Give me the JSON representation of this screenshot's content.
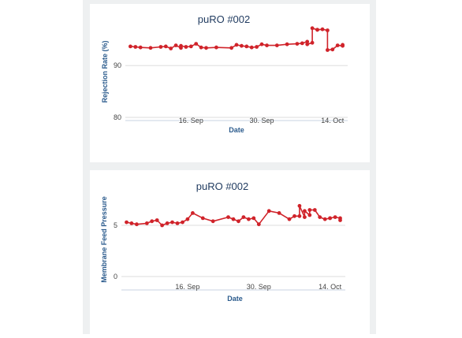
{
  "colors": {
    "series": "#d0232a",
    "axis_title": "#2a5a8c",
    "title": "#1f3a5f",
    "grid": "#dddddd",
    "panel_bg": "#eef0f1",
    "card_bg": "#ffffff"
  },
  "chart_data": [
    {
      "type": "line",
      "title": "puRO #002",
      "xlabel": "Date",
      "ylabel": "Rejection Rate (%)",
      "x_ticks": [
        "16. Sep",
        "30. Sep",
        "14. Oct"
      ],
      "x_tick_dates": [
        "2023-09-16",
        "2023-09-30",
        "2023-10-14"
      ],
      "y_ticks": [
        80,
        90
      ],
      "y_tick_labels": [
        "80",
        "90"
      ],
      "xlim": [
        "2023-09-03",
        "2023-10-17"
      ],
      "ylim": [
        80,
        99
      ],
      "grid": "horizontal",
      "series": [
        {
          "x": [
            "2023-09-04",
            "2023-09-05",
            "2023-09-06",
            "2023-09-08",
            "2023-09-10",
            "2023-09-11",
            "2023-09-12",
            "2023-09-13",
            "2023-09-14",
            "2023-09-14",
            "2023-09-15",
            "2023-09-16",
            "2023-09-17",
            "2023-09-18",
            "2023-09-19",
            "2023-09-21",
            "2023-09-24",
            "2023-09-25",
            "2023-09-26",
            "2023-09-27",
            "2023-09-28",
            "2023-09-29",
            "2023-09-30",
            "2023-10-01",
            "2023-10-03",
            "2023-10-05",
            "2023-10-07",
            "2023-10-08",
            "2023-10-09",
            "2023-10-09",
            "2023-10-10",
            "2023-10-10",
            "2023-10-11",
            "2023-10-11",
            "2023-10-12",
            "2023-10-13",
            "2023-10-13",
            "2023-10-14",
            "2023-10-15",
            "2023-10-16",
            "2023-10-16"
          ],
          "y": [
            93.7,
            93.6,
            93.5,
            93.4,
            93.6,
            93.7,
            93.3,
            93.9,
            93.4,
            93.8,
            93.6,
            93.7,
            94.2,
            93.5,
            93.4,
            93.5,
            93.4,
            94.0,
            93.8,
            93.7,
            93.5,
            93.6,
            94.1,
            93.9,
            93.9,
            94.1,
            94.2,
            94.3,
            94.6,
            94.1,
            94.4,
            97.2,
            96.9,
            96.9,
            97.0,
            96.8,
            93.0,
            93.1,
            93.9,
            93.8,
            94.0
          ]
        }
      ]
    },
    {
      "type": "line",
      "title": "puRO #002",
      "xlabel": "Date",
      "ylabel": "Membrane Feed Pressure",
      "x_ticks": [
        "16. Sep",
        "30. Sep",
        "14. Oct"
      ],
      "x_tick_dates": [
        "2023-09-16",
        "2023-09-30",
        "2023-10-14"
      ],
      "y_ticks": [
        0,
        5
      ],
      "y_tick_labels": [
        "0",
        "5"
      ],
      "xlim": [
        "2023-09-03",
        "2023-10-17"
      ],
      "ylim": [
        -1,
        9
      ],
      "grid": "horizontal",
      "series": [
        {
          "x": [
            "2023-09-04",
            "2023-09-05",
            "2023-09-06",
            "2023-09-08",
            "2023-09-09",
            "2023-09-10",
            "2023-09-11",
            "2023-09-12",
            "2023-09-13",
            "2023-09-14",
            "2023-09-15",
            "2023-09-16",
            "2023-09-17",
            "2023-09-19",
            "2023-09-21",
            "2023-09-24",
            "2023-09-25",
            "2023-09-26",
            "2023-09-27",
            "2023-09-28",
            "2023-09-29",
            "2023-09-30",
            "2023-10-02",
            "2023-10-04",
            "2023-10-06",
            "2023-10-07",
            "2023-10-08",
            "2023-10-08",
            "2023-10-09",
            "2023-10-09",
            "2023-10-10",
            "2023-10-10",
            "2023-10-11",
            "2023-10-12",
            "2023-10-13",
            "2023-10-14",
            "2023-10-14",
            "2023-10-15",
            "2023-10-16",
            "2023-10-16"
          ],
          "y": [
            5.3,
            5.2,
            5.1,
            5.2,
            5.4,
            5.5,
            5.0,
            5.2,
            5.3,
            5.2,
            5.3,
            5.6,
            6.2,
            5.7,
            5.4,
            5.8,
            5.6,
            5.4,
            5.8,
            5.6,
            5.7,
            5.1,
            6.4,
            6.2,
            5.6,
            5.9,
            5.9,
            6.9,
            5.8,
            6.4,
            6.0,
            6.5,
            6.5,
            5.8,
            5.6,
            5.7,
            5.7,
            5.8,
            5.7,
            5.5
          ]
        }
      ]
    }
  ]
}
